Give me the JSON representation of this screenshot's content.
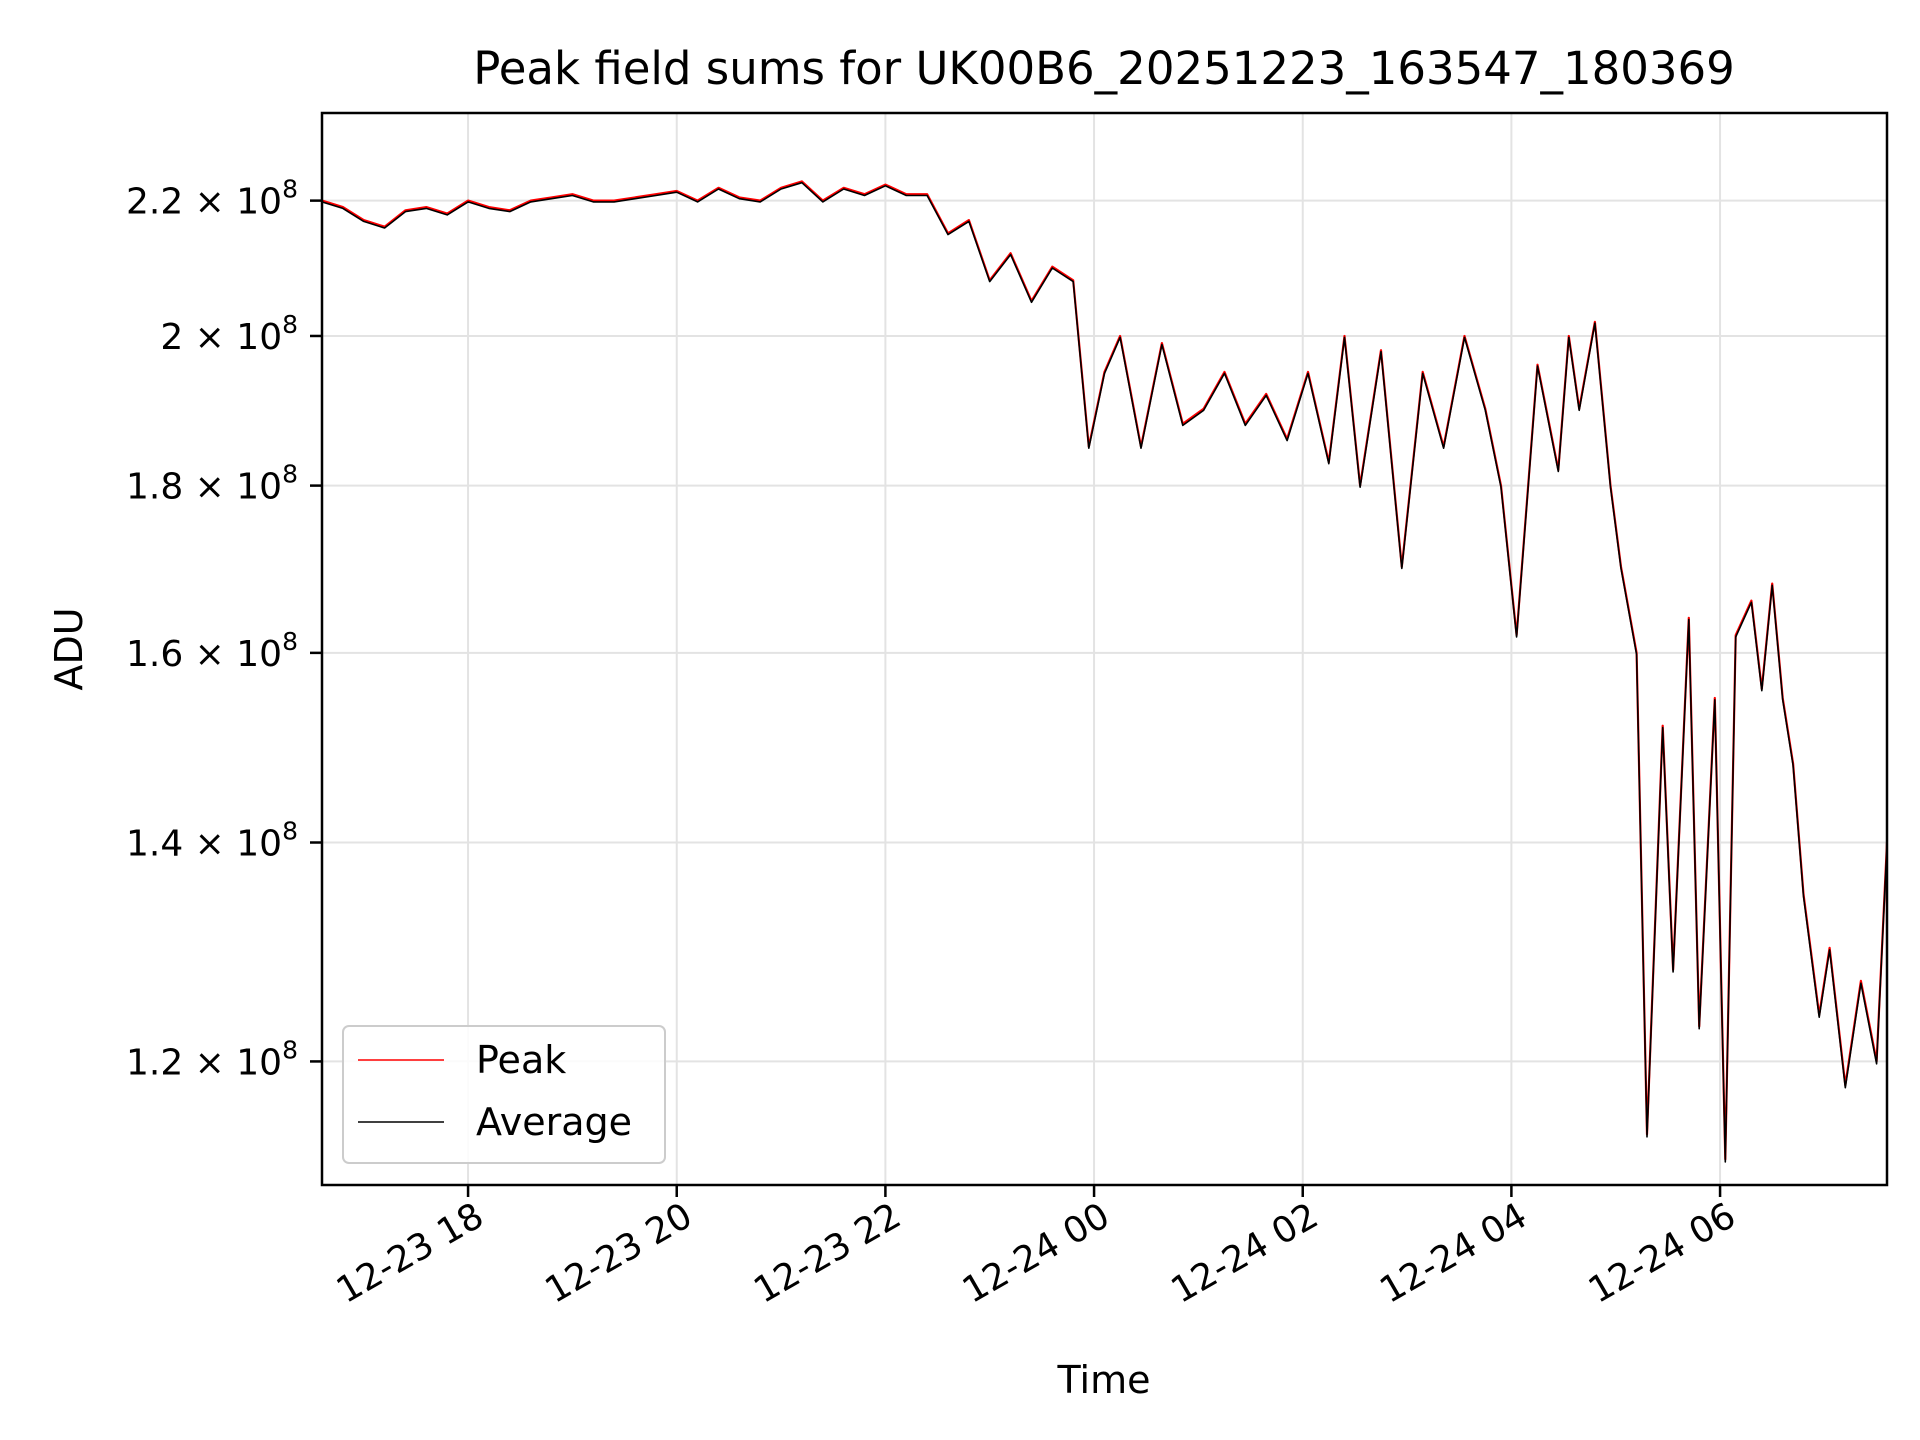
{
  "chart_data": {
    "type": "line",
    "title": "Peak field sums for UK00B6_20251223_163547_180369",
    "xlabel": "Time",
    "ylabel": "ADU",
    "x_unit": "hours since 2025-12-23 00:00",
    "xlim": [
      16.6,
      31.6
    ],
    "ylim": [
      110000000.0,
      234000000.0
    ],
    "yscale": "log",
    "grid": true,
    "legend_loc": "lower left",
    "x_ticks": [
      {
        "value": 18,
        "label": "12-23 18"
      },
      {
        "value": 20,
        "label": "12-23 20"
      },
      {
        "value": 22,
        "label": "12-23 22"
      },
      {
        "value": 24,
        "label": "12-24 00"
      },
      {
        "value": 26,
        "label": "12-24 02"
      },
      {
        "value": 28,
        "label": "12-24 04"
      },
      {
        "value": 30,
        "label": "12-24 06"
      }
    ],
    "y_ticks": [
      {
        "value": 120000000.0,
        "mantissa": "1.2"
      },
      {
        "value": 140000000.0,
        "mantissa": "1.4"
      },
      {
        "value": 160000000.0,
        "mantissa": "1.6"
      },
      {
        "value": 180000000.0,
        "mantissa": "1.8"
      },
      {
        "value": 200000000.0,
        "mantissa": "2"
      },
      {
        "value": 220000000.0,
        "mantissa": "2.2"
      }
    ],
    "y_tick_multiplier": "× 10",
    "y_tick_exponent": "8",
    "x": [
      16.6,
      16.8,
      17.0,
      17.2,
      17.4,
      17.6,
      17.8,
      18.0,
      18.2,
      18.4,
      18.6,
      18.8,
      19.0,
      19.2,
      19.4,
      19.6,
      19.8,
      20.0,
      20.2,
      20.4,
      20.6,
      20.8,
      21.0,
      21.2,
      21.4,
      21.6,
      21.8,
      22.0,
      22.2,
      22.4,
      22.6,
      22.8,
      23.0,
      23.2,
      23.4,
      23.6,
      23.8,
      23.95,
      24.1,
      24.25,
      24.45,
      24.65,
      24.85,
      25.05,
      25.25,
      25.45,
      25.65,
      25.85,
      26.05,
      26.25,
      26.4,
      26.55,
      26.75,
      26.95,
      27.15,
      27.35,
      27.55,
      27.75,
      27.9,
      28.05,
      28.25,
      28.45,
      28.55,
      28.65,
      28.8,
      28.95,
      29.05,
      29.2,
      29.3,
      29.45,
      29.55,
      29.7,
      29.8,
      29.95,
      30.05,
      30.15,
      30.3,
      30.4,
      30.5,
      30.6,
      30.7,
      30.8,
      30.95,
      31.05,
      31.2,
      31.35,
      31.5,
      31.6
    ],
    "series": [
      {
        "name": "Peak",
        "color": "#ff0000",
        "values": [
          220000000.0,
          219000000.0,
          217000000.0,
          216000000.0,
          218500000.0,
          219000000.0,
          218000000.0,
          220000000.0,
          219000000.0,
          218500000.0,
          220000000.0,
          220500000.0,
          221000000.0,
          220000000.0,
          220000000.0,
          220500000.0,
          221000000.0,
          221500000.0,
          220000000.0,
          222000000.0,
          220500000.0,
          220000000.0,
          222000000.0,
          223000000.0,
          220000000.0,
          222000000.0,
          221000000.0,
          222500000.0,
          221000000.0,
          221000000.0,
          215000000.0,
          217000000.0,
          208000000.0,
          212000000.0,
          205000000.0,
          210000000.0,
          208000000.0,
          185000000.0,
          195000000.0,
          200000000.0,
          185000000.0,
          199000000.0,
          188000000.0,
          190000000.0,
          195000000.0,
          188000000.0,
          192000000.0,
          186000000.0,
          195000000.0,
          183000000.0,
          200000000.0,
          180000000.0,
          198000000.0,
          170000000.0,
          195000000.0,
          185000000.0,
          200000000.0,
          190000000.0,
          180000000.0,
          162000000.0,
          196000000.0,
          182000000.0,
          200000000.0,
          190000000.0,
          202000000.0,
          180000000.0,
          170000000.0,
          160000000.0,
          114000000.0,
          152000000.0,
          128000000.0,
          164000000.0,
          123000000.0,
          155000000.0,
          112000000.0,
          162000000.0,
          166000000.0,
          156000000.0,
          168000000.0,
          155000000.0,
          148000000.0,
          135000000.0,
          124000000.0,
          130000000.0,
          118000000.0,
          127000000.0,
          120000000.0,
          140000000.0
        ]
      },
      {
        "name": "Average",
        "color": "#000000",
        "values": [
          219800000.0,
          218800000.0,
          216800000.0,
          215800000.0,
          218300000.0,
          218800000.0,
          217800000.0,
          219800000.0,
          218800000.0,
          218300000.0,
          219800000.0,
          220300000.0,
          220800000.0,
          219800000.0,
          219800000.0,
          220300000.0,
          220800000.0,
          221300000.0,
          219800000.0,
          221800000.0,
          220300000.0,
          219800000.0,
          221800000.0,
          222800000.0,
          219800000.0,
          221800000.0,
          220800000.0,
          222300000.0,
          220800000.0,
          220800000.0,
          214800000.0,
          216800000.0,
          207800000.0,
          211800000.0,
          204800000.0,
          209800000.0,
          207800000.0,
          184800000.0,
          194800000.0,
          199800000.0,
          184800000.0,
          198800000.0,
          187800000.0,
          189800000.0,
          194800000.0,
          187800000.0,
          191800000.0,
          185800000.0,
          194800000.0,
          182800000.0,
          199800000.0,
          179800000.0,
          197800000.0,
          169800000.0,
          194800000.0,
          184800000.0,
          199800000.0,
          189800000.0,
          179800000.0,
          161800000.0,
          195800000.0,
          181800000.0,
          199800000.0,
          189800000.0,
          201800000.0,
          179800000.0,
          169800000.0,
          159800000.0,
          113800000.0,
          151800000.0,
          127800000.0,
          163800000.0,
          122800000.0,
          154800000.0,
          111800000.0,
          161800000.0,
          165800000.0,
          155800000.0,
          167800000.0,
          154800000.0,
          147800000.0,
          134800000.0,
          123800000.0,
          129800000.0,
          117800000.0,
          126800000.0,
          119800000.0,
          139800000.0
        ]
      }
    ]
  }
}
